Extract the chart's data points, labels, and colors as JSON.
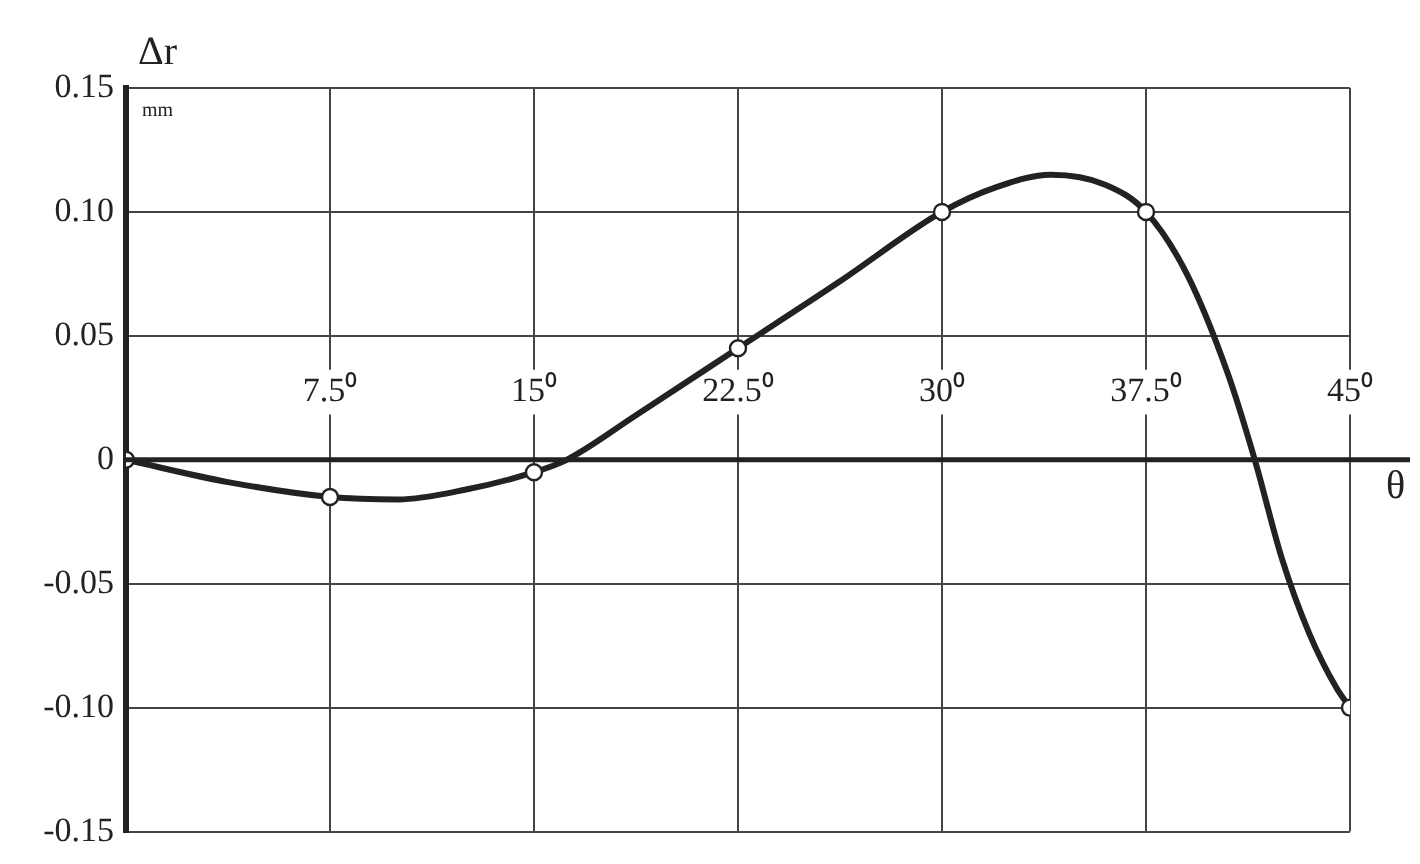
{
  "chart_data": {
    "type": "line",
    "xlabel": "θ",
    "ylabel": "Δr\nmm",
    "xlim": [
      0,
      45
    ],
    "ylim": [
      -0.15,
      0.15
    ],
    "xticks": [
      {
        "value": 0,
        "label": null
      },
      {
        "value": 7.5,
        "label": "7.5⁰"
      },
      {
        "value": 15,
        "label": "15⁰"
      },
      {
        "value": 22.5,
        "label": "22.5⁰"
      },
      {
        "value": 30,
        "label": "30⁰"
      },
      {
        "value": 37.5,
        "label": "37.5⁰"
      },
      {
        "value": 45,
        "label": "45⁰"
      }
    ],
    "yticks": [
      0.15,
      {
        "value": 0.1,
        "label": "0.10"
      },
      0.05,
      0,
      -0.05,
      {
        "value": -0.1,
        "label": "-0.10"
      },
      -0.15
    ],
    "grid": true,
    "legend": false,
    "series": [
      {
        "color": "#222222",
        "marker": "none",
        "x": [
          0,
          3.75,
          7.5,
          10,
          12.5,
          15,
          16.2,
          18.75,
          22.5,
          26.25,
          30,
          32,
          34,
          36,
          37.5,
          39,
          40.5,
          41.5,
          42.5,
          43.5,
          44.5,
          45
        ],
        "values": [
          0,
          -0.009,
          -0.015,
          -0.016,
          -0.012,
          -0.005,
          0,
          0.018,
          0.045,
          0.072,
          0.1,
          0.11,
          0.115,
          0.111,
          0.1,
          0.075,
          0.035,
          0,
          -0.04,
          -0.07,
          -0.092,
          -0.1
        ]
      },
      {
        "type": "scatter",
        "color": "#222222",
        "marker": "circle",
        "x": [
          0,
          7.5,
          15,
          22.5,
          30,
          37.5,
          45
        ],
        "values": [
          0,
          -0.015,
          -0.005,
          0.045,
          0.1,
          0.1,
          -0.1
        ]
      }
    ]
  }
}
